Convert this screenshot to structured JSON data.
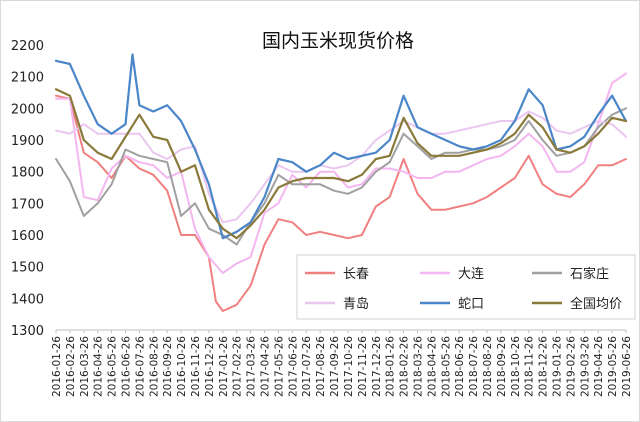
{
  "chart_data": {
    "type": "line",
    "title": "国内玉米现货价格",
    "xlabel": "",
    "ylabel": "",
    "ylim": [
      1300,
      2200
    ],
    "yticks": [
      1300,
      1400,
      1500,
      1600,
      1700,
      1800,
      1900,
      2000,
      2100,
      2200
    ],
    "grid": false,
    "legend_position": "lower-right inside",
    "x_tick_labels": [
      "2016-01-26",
      "2016-02-26",
      "2016-03-26",
      "2016-04-26",
      "2016-05-26",
      "2016-06-26",
      "2016-07-26",
      "2016-08-26",
      "2016-09-26",
      "2016-10-26",
      "2016-11-26",
      "2016-12-26",
      "2017-01-26",
      "2017-02-26",
      "2017-03-26",
      "2017-04-26",
      "2017-05-26",
      "2017-06-26",
      "2017-07-26",
      "2017-08-26",
      "2017-09-26",
      "2017-10-26",
      "2017-11-26",
      "2017-12-26",
      "2018-01-26",
      "2018-02-26",
      "2018-03-26",
      "2018-04-26",
      "2018-05-26",
      "2018-06-26",
      "2018-07-26",
      "2018-08-26",
      "2018-09-26",
      "2018-10-26",
      "2018-11-26",
      "2018-12-26",
      "2019-01-26",
      "2019-02-26",
      "2019-03-26",
      "2019-04-26",
      "2019-05-26",
      "2019-06-26"
    ],
    "x_unit": "month index from 2016-01",
    "series": [
      {
        "name": "长春",
        "color": "#f08080",
        "width": 2,
        "points": [
          [
            0,
            2040
          ],
          [
            1,
            2030
          ],
          [
            2,
            1860
          ],
          [
            3,
            1830
          ],
          [
            4,
            1780
          ],
          [
            5,
            1850
          ],
          [
            6,
            1810
          ],
          [
            7,
            1790
          ],
          [
            8,
            1740
          ],
          [
            9,
            1600
          ],
          [
            10,
            1600
          ],
          [
            11,
            1530
          ],
          [
            11.5,
            1390
          ],
          [
            12,
            1360
          ],
          [
            13,
            1380
          ],
          [
            14,
            1440
          ],
          [
            15,
            1570
          ],
          [
            16,
            1650
          ],
          [
            17,
            1640
          ],
          [
            18,
            1600
          ],
          [
            19,
            1610
          ],
          [
            20,
            1600
          ],
          [
            21,
            1590
          ],
          [
            22,
            1600
          ],
          [
            23,
            1690
          ],
          [
            24,
            1720
          ],
          [
            25,
            1840
          ],
          [
            26,
            1730
          ],
          [
            27,
            1680
          ],
          [
            28,
            1680
          ],
          [
            29,
            1690
          ],
          [
            30,
            1700
          ],
          [
            31,
            1720
          ],
          [
            32,
            1750
          ],
          [
            33,
            1780
          ],
          [
            34,
            1850
          ],
          [
            35,
            1760
          ],
          [
            36,
            1730
          ],
          [
            37,
            1720
          ],
          [
            38,
            1760
          ],
          [
            39,
            1820
          ],
          [
            40,
            1820
          ],
          [
            41,
            1840
          ]
        ]
      },
      {
        "name": "大连",
        "color": "#f4b6f0",
        "width": 2,
        "points": [
          [
            0,
            2030
          ],
          [
            1,
            2030
          ],
          [
            2,
            1720
          ],
          [
            3,
            1710
          ],
          [
            4,
            1810
          ],
          [
            5,
            1850
          ],
          [
            6,
            1830
          ],
          [
            7,
            1820
          ],
          [
            8,
            1780
          ],
          [
            9,
            1800
          ],
          [
            10,
            1620
          ],
          [
            11,
            1530
          ],
          [
            12,
            1480
          ],
          [
            13,
            1510
          ],
          [
            14,
            1530
          ],
          [
            15,
            1670
          ],
          [
            16,
            1700
          ],
          [
            17,
            1790
          ],
          [
            18,
            1750
          ],
          [
            19,
            1800
          ],
          [
            20,
            1800
          ],
          [
            21,
            1750
          ],
          [
            22,
            1760
          ],
          [
            23,
            1810
          ],
          [
            24,
            1810
          ],
          [
            25,
            1800
          ],
          [
            26,
            1780
          ],
          [
            27,
            1780
          ],
          [
            28,
            1800
          ],
          [
            29,
            1800
          ],
          [
            30,
            1820
          ],
          [
            31,
            1840
          ],
          [
            32,
            1850
          ],
          [
            33,
            1880
          ],
          [
            34,
            1920
          ],
          [
            35,
            1880
          ],
          [
            36,
            1800
          ],
          [
            37,
            1800
          ],
          [
            38,
            1830
          ],
          [
            39,
            1950
          ],
          [
            40,
            2080
          ],
          [
            41,
            2110
          ]
        ]
      },
      {
        "name": "石家庄",
        "color": "#a0a0a0",
        "width": 2,
        "points": [
          [
            0,
            1840
          ],
          [
            1,
            1770
          ],
          [
            2,
            1660
          ],
          [
            3,
            1700
          ],
          [
            4,
            1760
          ],
          [
            5,
            1870
          ],
          [
            6,
            1850
          ],
          [
            7,
            1840
          ],
          [
            8,
            1830
          ],
          [
            9,
            1660
          ],
          [
            10,
            1700
          ],
          [
            11,
            1620
          ],
          [
            12,
            1600
          ],
          [
            13,
            1570
          ],
          [
            14,
            1640
          ],
          [
            15,
            1700
          ],
          [
            16,
            1790
          ],
          [
            17,
            1760
          ],
          [
            18,
            1760
          ],
          [
            19,
            1760
          ],
          [
            20,
            1740
          ],
          [
            21,
            1730
          ],
          [
            22,
            1750
          ],
          [
            23,
            1800
          ],
          [
            24,
            1830
          ],
          [
            25,
            1920
          ],
          [
            26,
            1880
          ],
          [
            27,
            1840
          ],
          [
            28,
            1860
          ],
          [
            29,
            1860
          ],
          [
            30,
            1870
          ],
          [
            31,
            1870
          ],
          [
            32,
            1880
          ],
          [
            33,
            1900
          ],
          [
            34,
            1960
          ],
          [
            35,
            1900
          ],
          [
            36,
            1850
          ],
          [
            37,
            1860
          ],
          [
            38,
            1880
          ],
          [
            39,
            1940
          ],
          [
            40,
            1980
          ],
          [
            41,
            2000
          ]
        ]
      },
      {
        "name": "青岛",
        "color": "#eac6f0",
        "width": 2,
        "points": [
          [
            0,
            1930
          ],
          [
            1,
            1920
          ],
          [
            2,
            1950
          ],
          [
            3,
            1920
          ],
          [
            4,
            1920
          ],
          [
            5,
            1920
          ],
          [
            6,
            1920
          ],
          [
            7,
            1860
          ],
          [
            8,
            1840
          ],
          [
            9,
            1870
          ],
          [
            10,
            1880
          ],
          [
            11,
            1730
          ],
          [
            12,
            1640
          ],
          [
            13,
            1650
          ],
          [
            14,
            1700
          ],
          [
            15,
            1760
          ],
          [
            16,
            1820
          ],
          [
            17,
            1800
          ],
          [
            18,
            1800
          ],
          [
            19,
            1820
          ],
          [
            20,
            1810
          ],
          [
            21,
            1820
          ],
          [
            22,
            1850
          ],
          [
            23,
            1900
          ],
          [
            24,
            1930
          ],
          [
            25,
            1960
          ],
          [
            26,
            1940
          ],
          [
            27,
            1920
          ],
          [
            28,
            1920
          ],
          [
            29,
            1930
          ],
          [
            30,
            1940
          ],
          [
            31,
            1950
          ],
          [
            32,
            1960
          ],
          [
            33,
            1960
          ],
          [
            34,
            1990
          ],
          [
            35,
            1970
          ],
          [
            36,
            1930
          ],
          [
            37,
            1920
          ],
          [
            38,
            1940
          ],
          [
            39,
            1960
          ],
          [
            40,
            1950
          ],
          [
            41,
            1910
          ]
        ]
      },
      {
        "name": "蛇口",
        "color": "#4a86c8",
        "width": 2.2,
        "points": [
          [
            0,
            2150
          ],
          [
            1,
            2140
          ],
          [
            2,
            2040
          ],
          [
            3,
            1950
          ],
          [
            4,
            1920
          ],
          [
            5,
            1950
          ],
          [
            5.5,
            2170
          ],
          [
            6,
            2010
          ],
          [
            7,
            1990
          ],
          [
            8,
            2010
          ],
          [
            9,
            1960
          ],
          [
            10,
            1870
          ],
          [
            11,
            1760
          ],
          [
            12,
            1590
          ],
          [
            13,
            1610
          ],
          [
            14,
            1640
          ],
          [
            15,
            1720
          ],
          [
            16,
            1840
          ],
          [
            17,
            1830
          ],
          [
            18,
            1800
          ],
          [
            19,
            1820
          ],
          [
            20,
            1860
          ],
          [
            21,
            1840
          ],
          [
            22,
            1850
          ],
          [
            23,
            1860
          ],
          [
            24,
            1900
          ],
          [
            25,
            2040
          ],
          [
            26,
            1940
          ],
          [
            27,
            1920
          ],
          [
            28,
            1900
          ],
          [
            29,
            1880
          ],
          [
            30,
            1870
          ],
          [
            31,
            1880
          ],
          [
            32,
            1900
          ],
          [
            33,
            1960
          ],
          [
            34,
            2060
          ],
          [
            35,
            2010
          ],
          [
            36,
            1870
          ],
          [
            37,
            1880
          ],
          [
            38,
            1910
          ],
          [
            39,
            1980
          ],
          [
            40,
            2040
          ],
          [
            41,
            1960
          ]
        ]
      },
      {
        "name": "全国均价",
        "color": "#8a7a3a",
        "width": 2.2,
        "points": [
          [
            0,
            2060
          ],
          [
            1,
            2040
          ],
          [
            2,
            1900
          ],
          [
            3,
            1860
          ],
          [
            4,
            1840
          ],
          [
            5,
            1910
          ],
          [
            6,
            1980
          ],
          [
            7,
            1910
          ],
          [
            8,
            1900
          ],
          [
            9,
            1800
          ],
          [
            10,
            1820
          ],
          [
            11,
            1680
          ],
          [
            12,
            1620
          ],
          [
            13,
            1590
          ],
          [
            14,
            1630
          ],
          [
            15,
            1680
          ],
          [
            16,
            1750
          ],
          [
            17,
            1770
          ],
          [
            18,
            1780
          ],
          [
            19,
            1780
          ],
          [
            20,
            1780
          ],
          [
            21,
            1770
          ],
          [
            22,
            1790
          ],
          [
            23,
            1840
          ],
          [
            24,
            1850
          ],
          [
            25,
            1970
          ],
          [
            26,
            1890
          ],
          [
            27,
            1850
          ],
          [
            28,
            1850
          ],
          [
            29,
            1850
          ],
          [
            30,
            1860
          ],
          [
            31,
            1870
          ],
          [
            32,
            1890
          ],
          [
            33,
            1920
          ],
          [
            34,
            1980
          ],
          [
            35,
            1940
          ],
          [
            36,
            1870
          ],
          [
            37,
            1860
          ],
          [
            38,
            1880
          ],
          [
            39,
            1920
          ],
          [
            40,
            1970
          ],
          [
            41,
            1960
          ]
        ]
      }
    ]
  }
}
